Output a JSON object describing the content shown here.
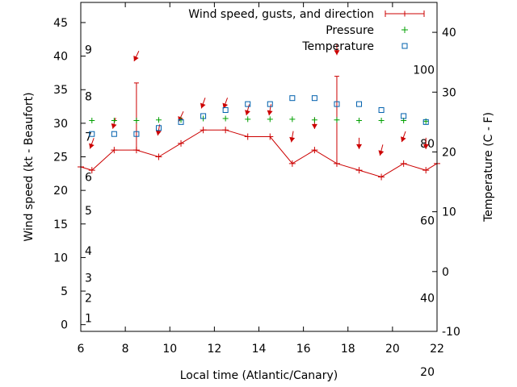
{
  "chart_data": {
    "type": "line",
    "xlabel": "Local time (Atlantic/Canary)",
    "ylabel": "Wind speed (kt - Beaufort)",
    "y2label": "Temperature (C - F)",
    "xlim": [
      6,
      22
    ],
    "ylim": [
      -1,
      48
    ],
    "y2lim": [
      -10,
      45
    ],
    "x_ticks": [
      "6",
      "8",
      "10",
      "12",
      "14",
      "16",
      "18",
      "20",
      "22"
    ],
    "y_ticks": [
      "0",
      "5",
      "10",
      "15",
      "20",
      "25",
      "30",
      "35",
      "40",
      "45"
    ],
    "y2_ticks": [
      "-10",
      "0",
      "10",
      "20",
      "30",
      "40"
    ],
    "beaufort_labels": [
      {
        "label": "1",
        "y": 1
      },
      {
        "label": "2",
        "y": 4
      },
      {
        "label": "3",
        "y": 7
      },
      {
        "label": "4",
        "y": 11
      },
      {
        "label": "5",
        "y": 17
      },
      {
        "label": "6",
        "y": 22
      },
      {
        "label": "7",
        "y": 28
      },
      {
        "label": "8",
        "y": 34
      },
      {
        "label": "9",
        "y": 41
      }
    ],
    "fahrenheit_labels": [
      {
        "label": "20",
        "y": -7
      },
      {
        "label": "40",
        "y": 4
      },
      {
        "label": "60",
        "y": 15.5
      },
      {
        "label": "80",
        "y": 27
      },
      {
        "label": "100",
        "y": 38
      }
    ],
    "legend": [
      {
        "name": "Wind speed, gusts, and direction",
        "marker": "line"
      },
      {
        "name": "Pressure",
        "marker": "plus"
      },
      {
        "name": "Temperature",
        "marker": "square"
      }
    ],
    "legend_position": "top-right",
    "wind_color": "#cc0000",
    "pressure_color": "#00a000",
    "temperature_color": "#0060ad",
    "wind": {
      "x": [
        6.0,
        6.5,
        7.5,
        8.5,
        9.5,
        10.5,
        11.5,
        12.5,
        13.5,
        14.5,
        15.5,
        16.5,
        17.5,
        18.5,
        19.5,
        20.5,
        21.5,
        22.0
      ],
      "speed": [
        23.5,
        23,
        26,
        26,
        25,
        27,
        29,
        29,
        28,
        28,
        24,
        26,
        24,
        23,
        22,
        24,
        23,
        24
      ],
      "gust": [
        null,
        null,
        null,
        36,
        null,
        null,
        null,
        null,
        null,
        null,
        null,
        null,
        37,
        null,
        null,
        null,
        null,
        null
      ]
    },
    "wind_direction": {
      "x": [
        6.5,
        7.5,
        8.5,
        9.5,
        10.5,
        11.5,
        12.5,
        13.5,
        14.5,
        15.5,
        16.5,
        17.5,
        18.5,
        19.5,
        20.5,
        21.5
      ],
      "y": [
        27,
        30,
        40,
        29,
        31,
        33,
        33,
        32,
        32,
        28,
        30,
        41,
        27,
        26,
        28,
        27
      ],
      "from_deg": [
        20,
        15,
        25,
        10,
        25,
        20,
        20,
        15,
        10,
        10,
        0,
        0,
        0,
        15,
        20,
        0
      ]
    },
    "pressure": {
      "x": [
        6.5,
        7.5,
        8.5,
        9.5,
        10.5,
        11.5,
        12.5,
        13.5,
        14.5,
        15.5,
        16.5,
        17.5,
        18.5,
        19.5,
        20.5,
        21.5
      ],
      "y": [
        30.4,
        30.4,
        30.4,
        30.5,
        30.5,
        30.7,
        30.7,
        30.6,
        30.6,
        30.6,
        30.5,
        30.5,
        30.4,
        30.4,
        30.4,
        30.3
      ]
    },
    "temperature": {
      "x": [
        6.5,
        7.5,
        8.5,
        9.5,
        10.5,
        11.5,
        12.5,
        13.5,
        14.5,
        15.5,
        16.5,
        17.5,
        18.5,
        19.5,
        20.5,
        21.5
      ],
      "y": [
        23,
        23,
        23,
        24,
        25,
        26,
        27,
        28,
        28,
        29,
        29,
        28,
        28,
        27,
        26,
        25
      ]
    }
  }
}
